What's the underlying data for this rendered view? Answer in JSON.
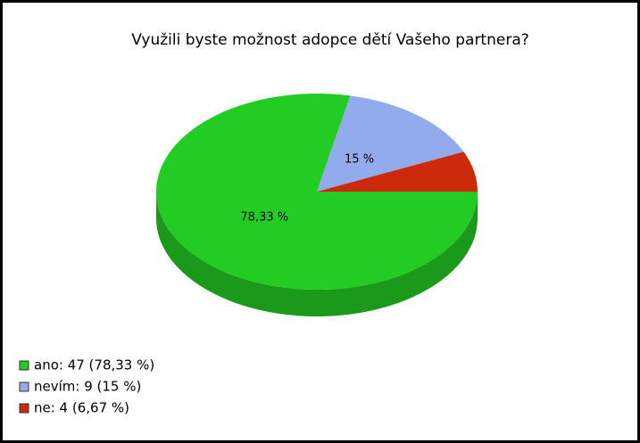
{
  "chart_data": {
    "type": "pie",
    "title": "Využili byste možnost adopce dětí Vašeho partnera?",
    "categories": [
      "ano: 47 (78,33 %)",
      "nevím: 9 (15 %)",
      "ne: 4 (6,67 %)"
    ],
    "values": [
      78.33,
      15,
      6.67
    ],
    "value_labels": [
      "78,33 %",
      "15 %",
      null
    ],
    "colors": [
      "#22cc22",
      "#92abec",
      "#cc2a0a"
    ],
    "legend": "bottom-left"
  }
}
